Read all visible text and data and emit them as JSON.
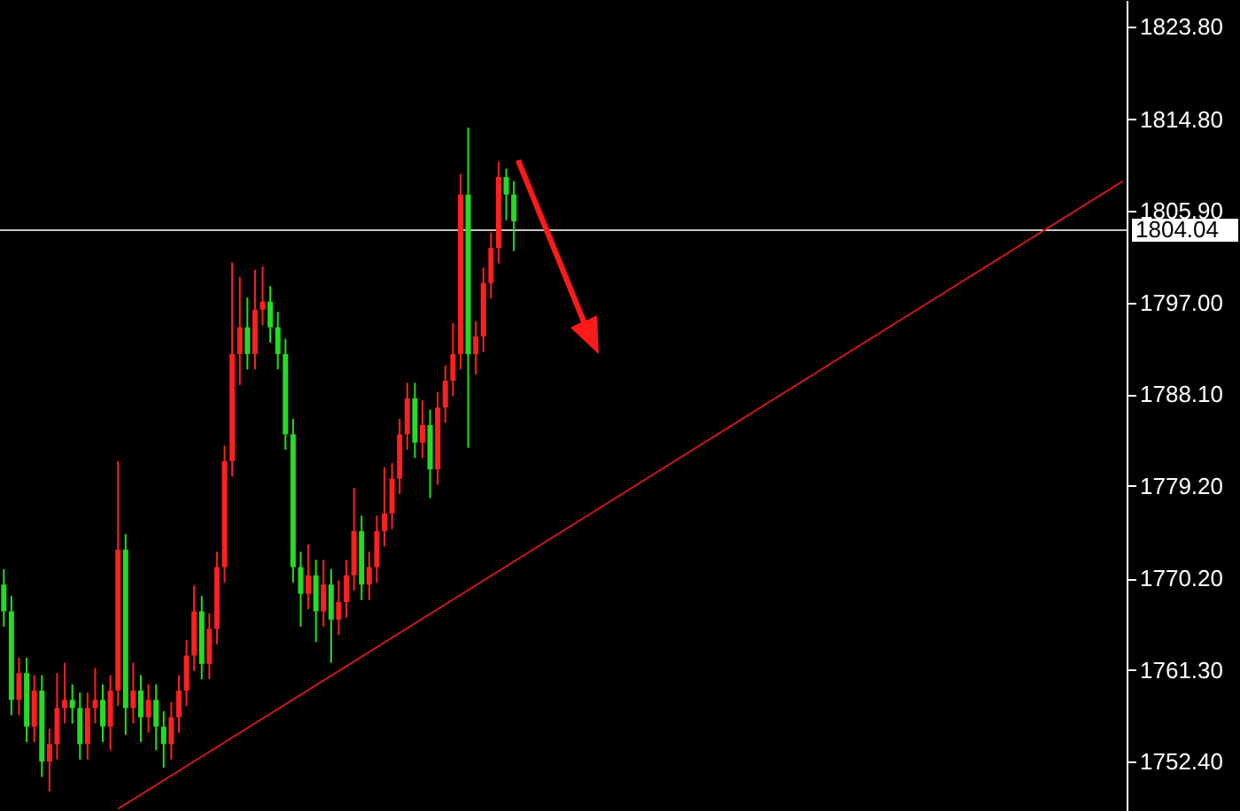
{
  "chart_data": {
    "type": "candlestick",
    "tick_labels": "y",
    "categories": [
      null,
      null,
      null,
      null,
      null,
      null,
      null,
      null,
      null,
      null,
      null,
      null,
      null,
      null,
      null,
      null,
      null,
      null,
      null,
      null,
      null,
      null,
      null,
      null,
      null,
      null,
      null,
      null,
      null,
      null,
      null,
      null,
      null,
      null,
      null,
      null,
      null,
      null,
      null,
      null,
      null,
      null,
      null,
      null,
      null,
      null,
      null,
      null,
      null,
      null,
      null,
      null,
      null,
      null,
      null,
      null,
      null,
      null,
      null,
      null,
      null,
      null,
      null,
      null,
      null,
      null,
      null,
      null,
      null,
      null,
      null,
      null,
      null,
      null,
      null,
      null,
      null,
      null,
      null,
      null,
      null,
      null,
      null,
      null,
      null,
      null,
      null,
      null,
      null,
      null,
      null,
      null,
      null,
      null,
      null,
      null,
      null,
      null,
      null,
      null,
      null,
      null,
      null,
      null,
      null,
      null,
      null,
      null,
      null,
      null,
      null,
      null,
      null,
      null,
      null,
      null,
      null,
      null,
      null,
      null,
      null,
      null,
      null,
      null,
      null,
      null,
      null,
      null,
      null,
      null,
      null,
      null,
      null,
      null,
      null,
      null,
      null,
      null,
      null,
      null,
      null,
      null,
      null,
      null,
      null,
      null,
      null,
      null
    ],
    "ohlc": [
      [
        1769.6,
        1771.1,
        1765.5,
        1767.0
      ],
      [
        1767.0,
        1768.5,
        1756.9,
        1758.4
      ],
      [
        1758.4,
        1762.5,
        1756.9,
        1761.0
      ],
      [
        1761.0,
        1762.5,
        1754.3,
        1755.8
      ],
      [
        1755.8,
        1760.8,
        1754.3,
        1759.3
      ],
      [
        1759.3,
        1760.8,
        1750.9,
        1752.4
      ],
      [
        1752.4,
        1755.6,
        1749.5,
        1754.1
      ],
      [
        1754.1,
        1761.0,
        1752.6,
        1757.6
      ],
      [
        1757.6,
        1762.0,
        1756.1,
        1758.4
      ],
      [
        1758.4,
        1759.9,
        1756.1,
        1757.6
      ],
      [
        1757.6,
        1759.1,
        1752.6,
        1754.1
      ],
      [
        1754.1,
        1759.1,
        1752.6,
        1757.6
      ],
      [
        1757.6,
        1761.5,
        1756.1,
        1758.4
      ],
      [
        1758.4,
        1759.9,
        1754.3,
        1755.8
      ],
      [
        1755.8,
        1760.8,
        1753.5,
        1759.3
      ],
      [
        1759.3,
        1781.6,
        1757.8,
        1773.0
      ],
      [
        1773.0,
        1774.5,
        1755.0,
        1757.6
      ],
      [
        1757.6,
        1762.0,
        1756.1,
        1759.3
      ],
      [
        1759.3,
        1760.8,
        1754.3,
        1756.7
      ],
      [
        1756.7,
        1759.9,
        1755.2,
        1758.4
      ],
      [
        1758.4,
        1759.9,
        1753.5,
        1755.8
      ],
      [
        1755.8,
        1757.3,
        1751.8,
        1754.1
      ],
      [
        1754.1,
        1758.2,
        1752.6,
        1756.7
      ],
      [
        1756.7,
        1760.8,
        1755.2,
        1759.3
      ],
      [
        1759.3,
        1764.2,
        1757.8,
        1762.7
      ],
      [
        1762.7,
        1769.5,
        1761.2,
        1767.0
      ],
      [
        1767.0,
        1768.5,
        1760.4,
        1761.9
      ],
      [
        1761.9,
        1766.8,
        1760.4,
        1765.3
      ],
      [
        1765.3,
        1772.8,
        1763.8,
        1771.3
      ],
      [
        1771.3,
        1783.1,
        1769.8,
        1781.6
      ],
      [
        1781.6,
        1800.9,
        1780.1,
        1792.0
      ],
      [
        1792.0,
        1799.5,
        1789.0,
        1794.6
      ],
      [
        1794.6,
        1797.5,
        1790.5,
        1792.0
      ],
      [
        1792.0,
        1800.2,
        1790.5,
        1796.3
      ],
      [
        1796.3,
        1800.5,
        1794.8,
        1797.1
      ],
      [
        1797.1,
        1798.6,
        1793.1,
        1794.6
      ],
      [
        1794.6,
        1796.1,
        1790.5,
        1792.0
      ],
      [
        1792.0,
        1793.5,
        1782.7,
        1784.2
      ],
      [
        1784.2,
        1785.7,
        1769.8,
        1771.3
      ],
      [
        1771.3,
        1772.8,
        1765.5,
        1768.7
      ],
      [
        1768.7,
        1773.5,
        1767.2,
        1770.5
      ],
      [
        1770.5,
        1772.0,
        1764.0,
        1767.0
      ],
      [
        1767.0,
        1772.0,
        1765.5,
        1769.6
      ],
      [
        1769.6,
        1771.1,
        1762.0,
        1766.2
      ],
      [
        1766.2,
        1770.0,
        1764.7,
        1767.9
      ],
      [
        1767.9,
        1772.0,
        1766.4,
        1770.5
      ],
      [
        1770.5,
        1779.0,
        1769.0,
        1774.8
      ],
      [
        1774.8,
        1776.3,
        1768.1,
        1769.6
      ],
      [
        1769.6,
        1772.8,
        1768.1,
        1771.3
      ],
      [
        1771.3,
        1776.3,
        1769.8,
        1774.8
      ],
      [
        1774.8,
        1781.0,
        1773.3,
        1776.5
      ],
      [
        1776.5,
        1781.4,
        1775.0,
        1779.9
      ],
      [
        1779.9,
        1785.7,
        1778.4,
        1784.2
      ],
      [
        1784.2,
        1789.2,
        1782.7,
        1787.7
      ],
      [
        1787.7,
        1789.2,
        1781.9,
        1783.4
      ],
      [
        1783.4,
        1787.5,
        1781.9,
        1785.1
      ],
      [
        1785.1,
        1786.6,
        1778.0,
        1780.8
      ],
      [
        1780.8,
        1788.3,
        1779.3,
        1786.8
      ],
      [
        1786.8,
        1790.9,
        1785.3,
        1789.4
      ],
      [
        1789.4,
        1795.0,
        1787.9,
        1792.0
      ],
      [
        1792.0,
        1809.5,
        1790.5,
        1807.5
      ],
      [
        1807.5,
        1814.0,
        1782.9,
        1792.0
      ],
      [
        1792.0,
        1795.2,
        1790.0,
        1793.7
      ],
      [
        1793.7,
        1800.4,
        1792.2,
        1798.9
      ],
      [
        1798.9,
        1803.8,
        1797.4,
        1802.3
      ],
      [
        1802.3,
        1810.7,
        1800.8,
        1809.2
      ],
      [
        1809.2,
        1810.0,
        1805.0,
        1807.5
      ],
      [
        1807.5,
        1808.8,
        1802.0,
        1804.9
      ],
      null,
      null,
      null,
      null,
      null,
      null,
      null,
      null,
      null,
      null,
      null,
      null,
      null,
      null,
      null,
      null,
      null,
      null,
      null,
      null,
      null,
      null,
      null,
      null,
      null,
      null,
      null,
      null,
      null,
      null,
      null,
      null,
      null,
      null,
      null,
      null,
      null,
      null,
      null,
      null,
      null,
      null,
      null,
      null,
      null,
      null,
      null,
      null,
      null,
      null,
      null,
      null,
      null,
      null,
      null,
      null,
      null,
      null,
      null,
      null,
      null,
      null,
      null,
      null,
      null,
      null,
      null,
      null,
      null,
      null,
      null,
      null,
      null,
      null,
      null,
      null,
      null,
      null,
      null,
      null
    ],
    "colors": [
      "#22dd22",
      "#22dd22",
      "#ff2020",
      "#22dd22",
      "#ff2020",
      "#22dd22",
      "#ff2020",
      "#ff2020",
      "#ff2020",
      "#22dd22",
      "#22dd22",
      "#ff2020",
      "#ff2020",
      "#22dd22",
      "#ff2020",
      "#ff2020",
      "#22dd22",
      "#ff2020",
      "#22dd22",
      "#ff2020",
      "#22dd22",
      "#22dd22",
      "#ff2020",
      "#ff2020",
      "#ff2020",
      "#ff2020",
      "#22dd22",
      "#ff2020",
      "#ff2020",
      "#ff2020",
      "#ff2020",
      "#ff2020",
      "#22dd22",
      "#ff2020",
      "#ff2020",
      "#22dd22",
      "#22dd22",
      "#22dd22",
      "#22dd22",
      "#22dd22",
      "#ff2020",
      "#22dd22",
      "#ff2020",
      "#22dd22",
      "#ff2020",
      "#ff2020",
      "#ff2020",
      "#22dd22",
      "#ff2020",
      "#ff2020",
      "#ff2020",
      "#ff2020",
      "#ff2020",
      "#ff2020",
      "#22dd22",
      "#ff2020",
      "#22dd22",
      "#ff2020",
      "#ff2020",
      "#ff2020",
      "#ff2020",
      "#22dd22",
      "#ff2020",
      "#ff2020",
      "#ff2020",
      "#ff2020",
      "#22dd22",
      "#22dd22",
      null,
      null,
      null,
      null,
      null,
      null,
      null,
      null,
      null,
      null,
      null,
      null,
      null,
      null,
      null,
      null,
      null,
      null,
      null,
      null,
      null,
      null,
      null,
      null,
      null,
      null,
      null,
      null,
      null,
      null,
      null,
      null,
      null,
      null,
      null,
      null,
      null,
      null,
      null,
      null,
      null,
      null,
      null,
      null,
      null,
      null,
      null,
      null,
      null,
      null,
      null,
      null,
      null,
      null,
      null,
      null,
      null,
      null,
      null,
      null,
      null,
      null,
      null,
      null,
      null,
      null,
      null,
      null,
      null,
      null,
      null,
      null,
      null,
      null,
      null,
      null,
      null,
      null,
      null,
      null
    ],
    "series": [
      {
        "type": "line",
        "color": "#d01818",
        "values": [
          null,
          null,
          null,
          null,
          null,
          null,
          null,
          null,
          null,
          null,
          null,
          null,
          null,
          null,
          null,
          1747.8,
          null,
          null,
          null,
          null,
          null,
          null,
          null,
          null,
          null,
          null,
          null,
          null,
          null,
          null,
          null,
          null,
          null,
          null,
          null,
          null,
          null,
          null,
          null,
          null,
          null,
          null,
          null,
          null,
          null,
          null,
          null,
          null,
          null,
          null,
          null,
          null,
          null,
          null,
          null,
          null,
          null,
          null,
          null,
          null,
          null,
          null,
          null,
          null,
          null,
          null,
          null,
          null,
          null,
          null,
          null,
          null,
          null,
          null,
          null,
          null,
          null,
          null,
          null,
          null,
          null,
          null,
          null,
          null,
          null,
          null,
          null,
          null,
          null,
          null,
          null,
          null,
          null,
          null,
          null,
          null,
          null,
          null,
          null,
          null,
          null,
          null,
          null,
          null,
          null,
          null,
          null,
          null,
          null,
          null,
          null,
          null,
          null,
          null,
          null,
          null,
          null,
          null,
          null,
          null,
          null,
          null,
          null,
          null,
          null,
          null,
          null,
          null,
          null,
          null,
          null,
          null,
          null,
          null,
          null,
          null,
          null,
          null,
          null,
          null,
          null,
          null,
          null,
          null,
          null,
          null,
          null,
          1808.8
        ]
      }
    ],
    "ylim": [
      1747.6,
      1826.4
    ],
    "yticks": [
      {
        "value": 1823.8,
        "label": "1823.80"
      },
      {
        "value": 1814.8,
        "label": "1814.80"
      },
      {
        "value": 1805.9,
        "label": "1805.90"
      },
      {
        "value": 1797.0,
        "label": "1797.00"
      },
      {
        "value": 1788.1,
        "label": "1788.10"
      },
      {
        "value": 1779.2,
        "label": "1779.20"
      },
      {
        "value": 1770.2,
        "label": "1770.20"
      },
      {
        "value": 1761.3,
        "label": "1761.30"
      },
      {
        "value": 1752.4,
        "label": "1752.40"
      }
    ],
    "ref_lines": [
      {
        "axis": "y",
        "value": 1804.04,
        "label": "1804.04",
        "color": "#c8c8c8"
      }
    ]
  }
}
